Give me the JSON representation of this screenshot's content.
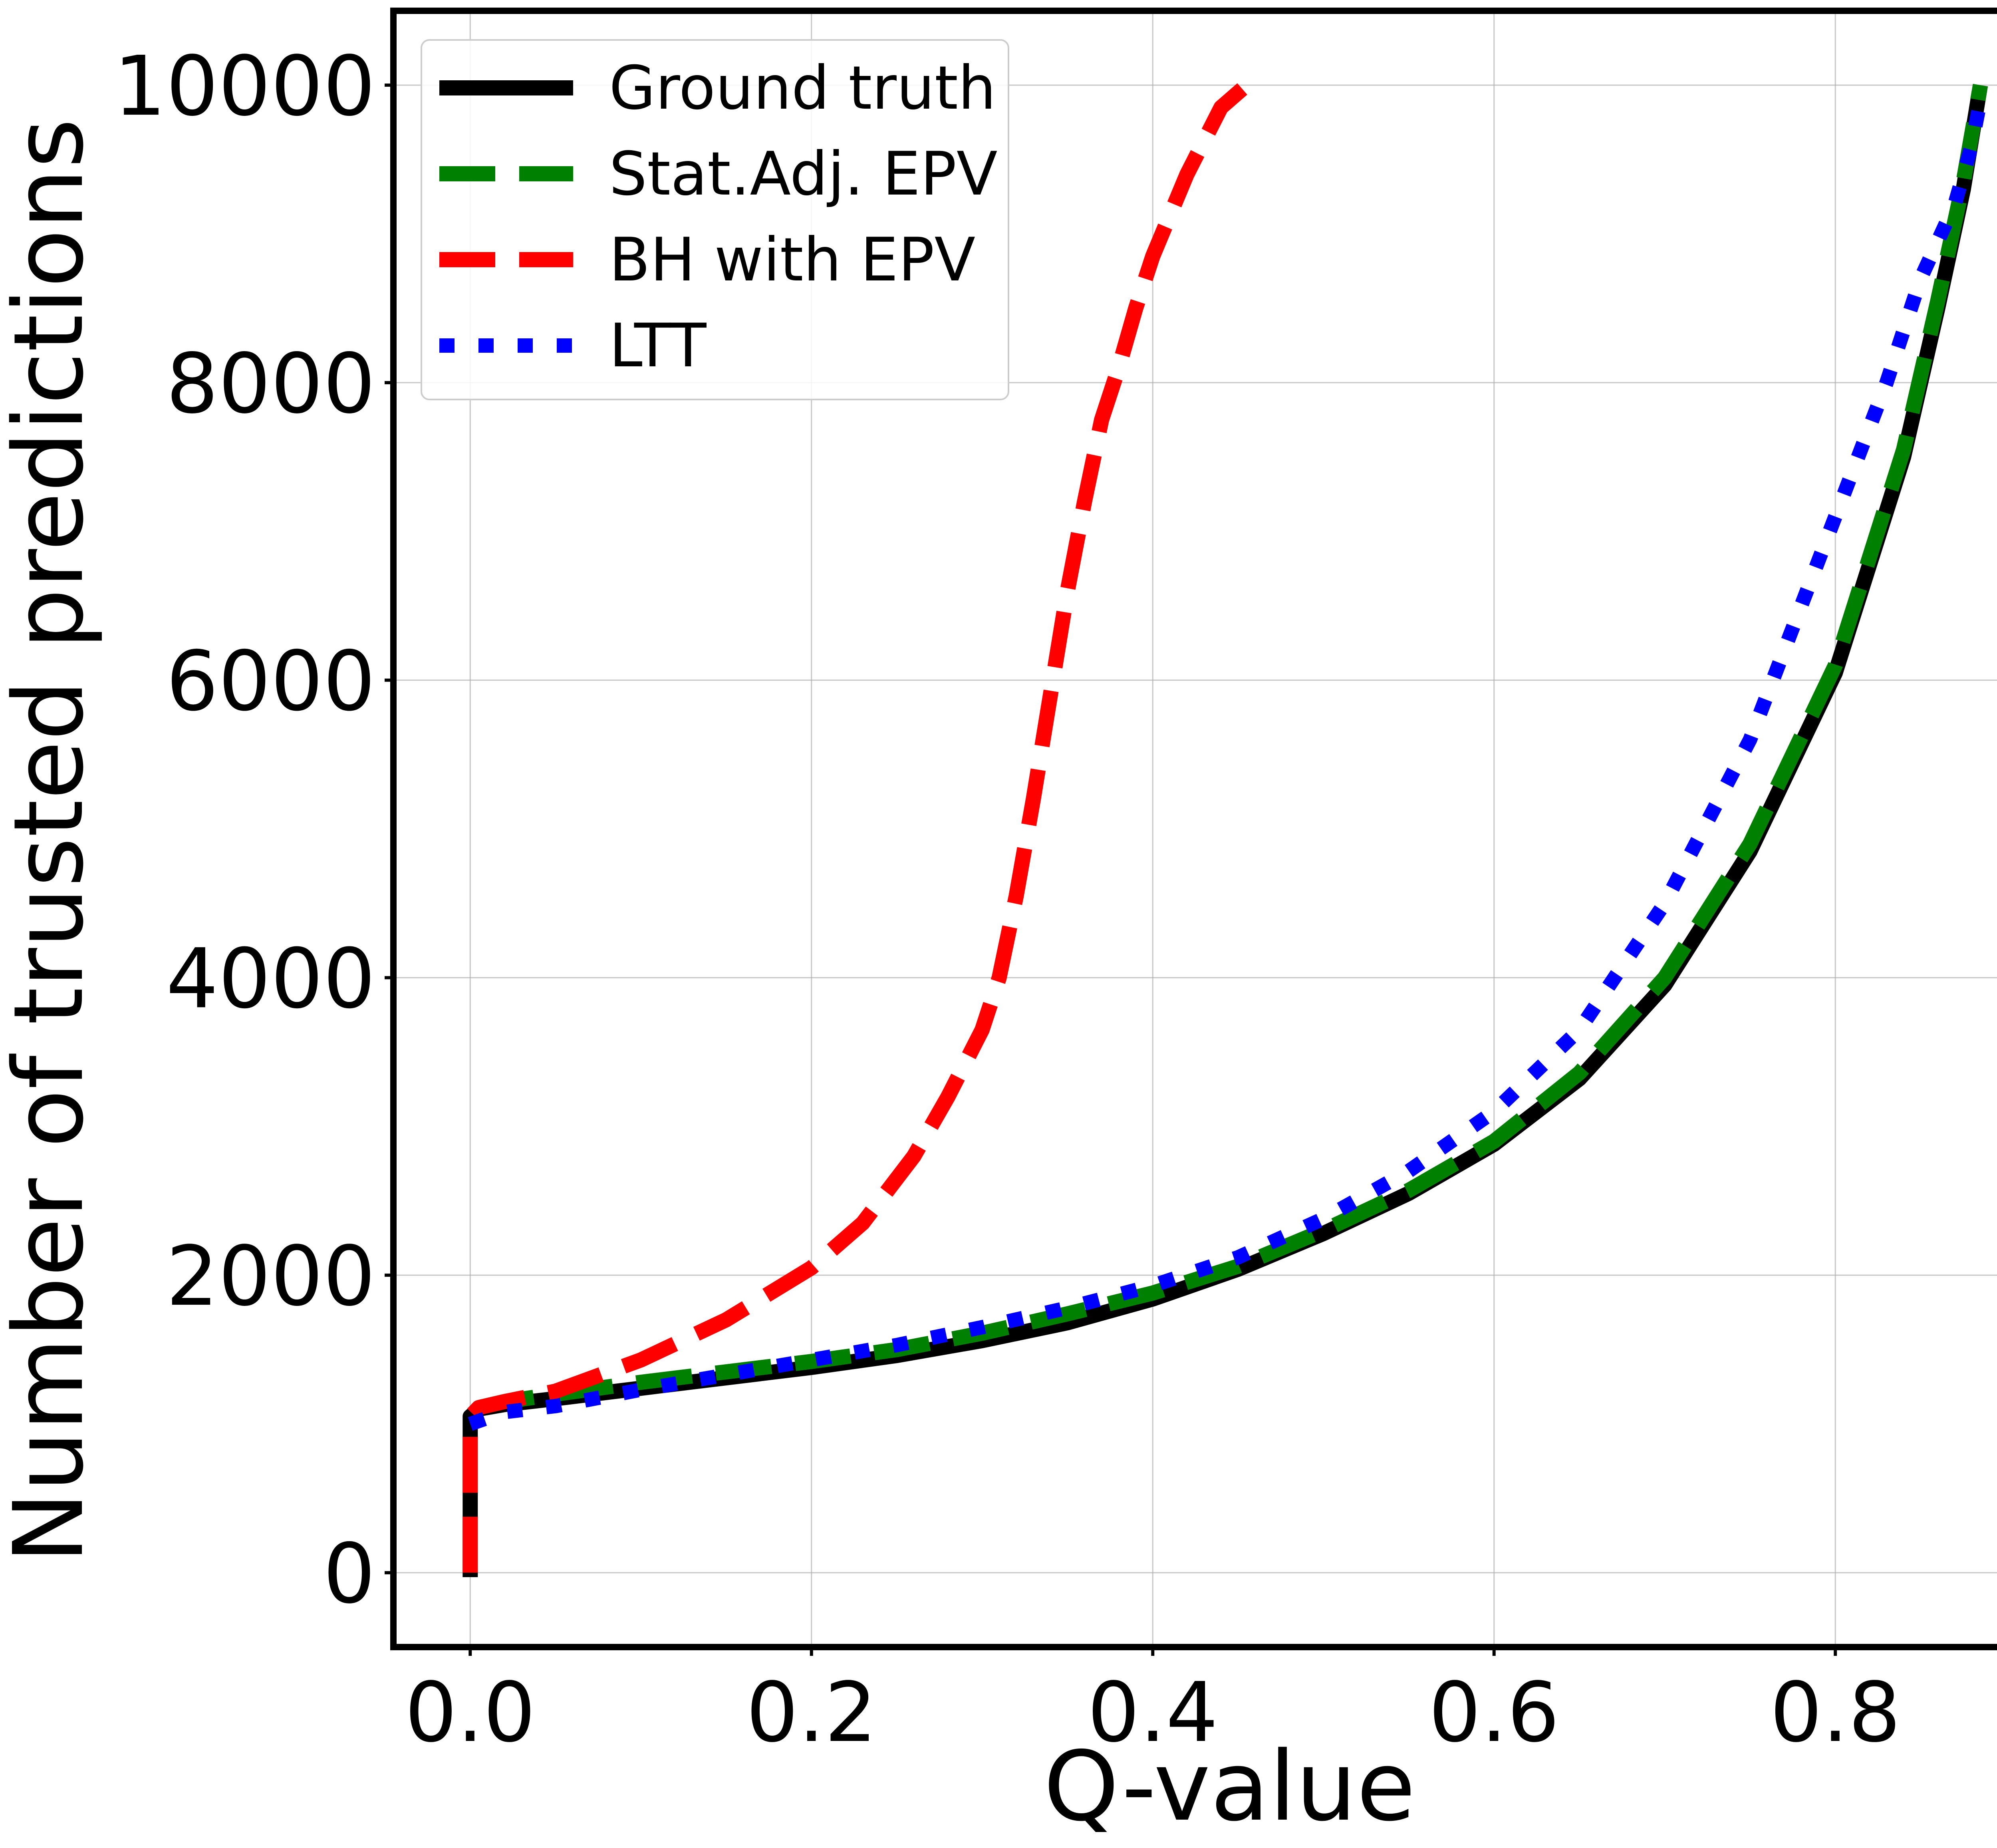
{
  "chart_data": {
    "type": "line",
    "title": "",
    "xlabel": "Q-value",
    "ylabel": "Number of trusted predictions",
    "xlim": [
      -0.045,
      0.935
    ],
    "ylim": [
      -500,
      10500
    ],
    "grid": true,
    "legend_position": "top-left",
    "xticks": [
      0.0,
      0.2,
      0.4,
      0.6,
      0.8
    ],
    "xtick_labels": [
      "0.0",
      "0.2",
      "0.4",
      "0.6",
      "0.8"
    ],
    "yticks": [
      0,
      2000,
      4000,
      6000,
      8000,
      10000
    ],
    "ytick_labels": [
      "0",
      "2000",
      "4000",
      "6000",
      "8000",
      "10000"
    ],
    "series": [
      {
        "name": "Ground truth",
        "color": "#000000",
        "style": "solid",
        "x": [
          0.0,
          0.0,
          0.0,
          0.005,
          0.02,
          0.05,
          0.1,
          0.15,
          0.2,
          0.25,
          0.3,
          0.35,
          0.4,
          0.45,
          0.5,
          0.55,
          0.6,
          0.65,
          0.7,
          0.75,
          0.8,
          0.84,
          0.86,
          0.875,
          0.885
        ],
        "y": [
          -30,
          500,
          1050,
          1100,
          1130,
          1170,
          1240,
          1310,
          1380,
          1460,
          1560,
          1680,
          1840,
          2040,
          2280,
          2550,
          2880,
          3320,
          3950,
          4850,
          6050,
          7500,
          8500,
          9300,
          10000
        ]
      },
      {
        "name": "Stat.Adj. EPV",
        "color": "#008000",
        "style": "dashed",
        "x": [
          0.005,
          0.02,
          0.05,
          0.1,
          0.15,
          0.2,
          0.25,
          0.3,
          0.35,
          0.4,
          0.45,
          0.5,
          0.55,
          0.6,
          0.65,
          0.7,
          0.75,
          0.8,
          0.84,
          0.86,
          0.875,
          0.885
        ],
        "y": [
          1110,
          1150,
          1200,
          1280,
          1350,
          1420,
          1500,
          1610,
          1740,
          1880,
          2060,
          2300,
          2570,
          2900,
          3360,
          4000,
          4900,
          6100,
          7550,
          8550,
          9350,
          10000
        ]
      },
      {
        "name": "BH with EPV",
        "color": "#ff0000",
        "style": "dashed",
        "x": [
          0.0,
          0.0,
          0.0,
          0.005,
          0.02,
          0.05,
          0.1,
          0.15,
          0.2,
          0.23,
          0.26,
          0.28,
          0.3,
          0.31,
          0.32,
          0.33,
          0.34,
          0.35,
          0.36,
          0.37,
          0.38,
          0.39,
          0.4,
          0.42,
          0.44,
          0.455
        ],
        "y": [
          0,
          500,
          1050,
          1110,
          1150,
          1220,
          1430,
          1700,
          2050,
          2350,
          2800,
          3200,
          3650,
          4000,
          4550,
          5200,
          5900,
          6600,
          7200,
          7750,
          8100,
          8500,
          8850,
          9400,
          9850,
          10000
        ]
      },
      {
        "name": "LTT",
        "color": "#0000ff",
        "style": "dotted",
        "x": [
          0.0,
          0.02,
          0.05,
          0.1,
          0.15,
          0.2,
          0.25,
          0.3,
          0.35,
          0.4,
          0.45,
          0.5,
          0.55,
          0.6,
          0.65,
          0.7,
          0.75,
          0.8,
          0.83,
          0.85,
          0.87,
          0.88,
          0.885
        ],
        "y": [
          1000,
          1080,
          1120,
          1230,
          1330,
          1430,
          1530,
          1650,
          1780,
          1930,
          2120,
          2380,
          2700,
          3100,
          3650,
          4500,
          5600,
          7100,
          8000,
          8700,
          9200,
          9600,
          9900
        ]
      }
    ]
  }
}
